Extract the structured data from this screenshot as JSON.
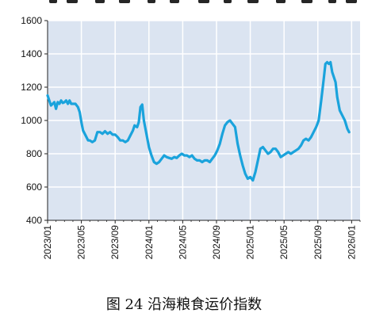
{
  "caption": "图 24 沿海粮食运价指数",
  "chart_data": {
    "type": "line",
    "title": "图 24 沿海粮食运价指数",
    "xlabel": "",
    "ylabel": "",
    "ylim": [
      400,
      1600
    ],
    "yticks": [
      400,
      600,
      800,
      1000,
      1200,
      1400,
      1600
    ],
    "xticks": [
      "2023/01",
      "2023/05",
      "2023/09",
      "2024/01",
      "2024/05",
      "2024/09",
      "2025/01",
      "2025/05",
      "2025/09",
      "2026/01"
    ],
    "grid": true,
    "legend": "none",
    "x_range_months": [
      0,
      37
    ],
    "series": [
      {
        "color": "#1aa3dc",
        "points": [
          [
            0.0,
            1150
          ],
          [
            0.2,
            1120
          ],
          [
            0.4,
            1090
          ],
          [
            0.6,
            1100
          ],
          [
            0.8,
            1110
          ],
          [
            1.0,
            1070
          ],
          [
            1.2,
            1110
          ],
          [
            1.4,
            1100
          ],
          [
            1.6,
            1120
          ],
          [
            1.8,
            1105
          ],
          [
            2.0,
            1110
          ],
          [
            2.2,
            1120
          ],
          [
            2.4,
            1100
          ],
          [
            2.6,
            1120
          ],
          [
            2.8,
            1100
          ],
          [
            3.0,
            1100
          ],
          [
            3.3,
            1100
          ],
          [
            3.6,
            1080
          ],
          [
            3.8,
            1050
          ],
          [
            4.0,
            990
          ],
          [
            4.2,
            940
          ],
          [
            4.5,
            910
          ],
          [
            4.8,
            880
          ],
          [
            5.0,
            880
          ],
          [
            5.3,
            870
          ],
          [
            5.6,
            880
          ],
          [
            5.9,
            930
          ],
          [
            6.2,
            930
          ],
          [
            6.5,
            920
          ],
          [
            6.8,
            935
          ],
          [
            7.1,
            920
          ],
          [
            7.4,
            930
          ],
          [
            7.7,
            915
          ],
          [
            8.0,
            915
          ],
          [
            8.3,
            900
          ],
          [
            8.6,
            880
          ],
          [
            8.9,
            880
          ],
          [
            9.2,
            870
          ],
          [
            9.5,
            880
          ],
          [
            9.8,
            910
          ],
          [
            10.1,
            940
          ],
          [
            10.3,
            970
          ],
          [
            10.6,
            960
          ],
          [
            10.8,
            990
          ],
          [
            11.0,
            1080
          ],
          [
            11.2,
            1095
          ],
          [
            11.4,
            1000
          ],
          [
            11.7,
            920
          ],
          [
            12.0,
            840
          ],
          [
            12.3,
            790
          ],
          [
            12.6,
            750
          ],
          [
            12.9,
            740
          ],
          [
            13.2,
            750
          ],
          [
            13.5,
            770
          ],
          [
            13.8,
            790
          ],
          [
            14.1,
            780
          ],
          [
            14.4,
            775
          ],
          [
            14.7,
            770
          ],
          [
            15.0,
            780
          ],
          [
            15.3,
            775
          ],
          [
            15.6,
            790
          ],
          [
            15.9,
            800
          ],
          [
            16.2,
            790
          ],
          [
            16.5,
            790
          ],
          [
            16.8,
            780
          ],
          [
            17.1,
            790
          ],
          [
            17.4,
            770
          ],
          [
            17.7,
            760
          ],
          [
            18.0,
            760
          ],
          [
            18.3,
            750
          ],
          [
            18.6,
            760
          ],
          [
            18.9,
            760
          ],
          [
            19.2,
            750
          ],
          [
            19.5,
            770
          ],
          [
            19.8,
            790
          ],
          [
            20.1,
            820
          ],
          [
            20.4,
            860
          ],
          [
            20.7,
            920
          ],
          [
            21.0,
            970
          ],
          [
            21.3,
            990
          ],
          [
            21.6,
            1000
          ],
          [
            21.9,
            980
          ],
          [
            22.2,
            960
          ],
          [
            22.5,
            860
          ],
          [
            22.8,
            790
          ],
          [
            23.1,
            730
          ],
          [
            23.4,
            680
          ],
          [
            23.7,
            650
          ],
          [
            24.0,
            660
          ],
          [
            24.3,
            640
          ],
          [
            24.6,
            690
          ],
          [
            24.9,
            760
          ],
          [
            25.2,
            830
          ],
          [
            25.5,
            840
          ],
          [
            25.8,
            820
          ],
          [
            26.1,
            800
          ],
          [
            26.4,
            810
          ],
          [
            26.7,
            830
          ],
          [
            27.0,
            830
          ],
          [
            27.3,
            810
          ],
          [
            27.6,
            780
          ],
          [
            27.9,
            790
          ],
          [
            28.2,
            800
          ],
          [
            28.5,
            810
          ],
          [
            28.8,
            800
          ],
          [
            29.1,
            810
          ],
          [
            29.4,
            820
          ],
          [
            29.7,
            830
          ],
          [
            30.0,
            850
          ],
          [
            30.3,
            880
          ],
          [
            30.6,
            890
          ],
          [
            30.9,
            880
          ],
          [
            31.2,
            900
          ],
          [
            31.5,
            930
          ],
          [
            31.8,
            960
          ],
          [
            32.1,
            1000
          ],
          [
            32.4,
            1120
          ],
          [
            32.7,
            1250
          ],
          [
            32.9,
            1340
          ],
          [
            33.1,
            1350
          ],
          [
            33.3,
            1340
          ],
          [
            33.5,
            1350
          ],
          [
            33.7,
            1290
          ],
          [
            33.9,
            1260
          ],
          [
            34.1,
            1230
          ],
          [
            34.3,
            1140
          ],
          [
            34.6,
            1060
          ],
          [
            34.9,
            1030
          ],
          [
            35.2,
            1000
          ],
          [
            35.5,
            950
          ],
          [
            35.7,
            930
          ]
        ]
      }
    ]
  }
}
